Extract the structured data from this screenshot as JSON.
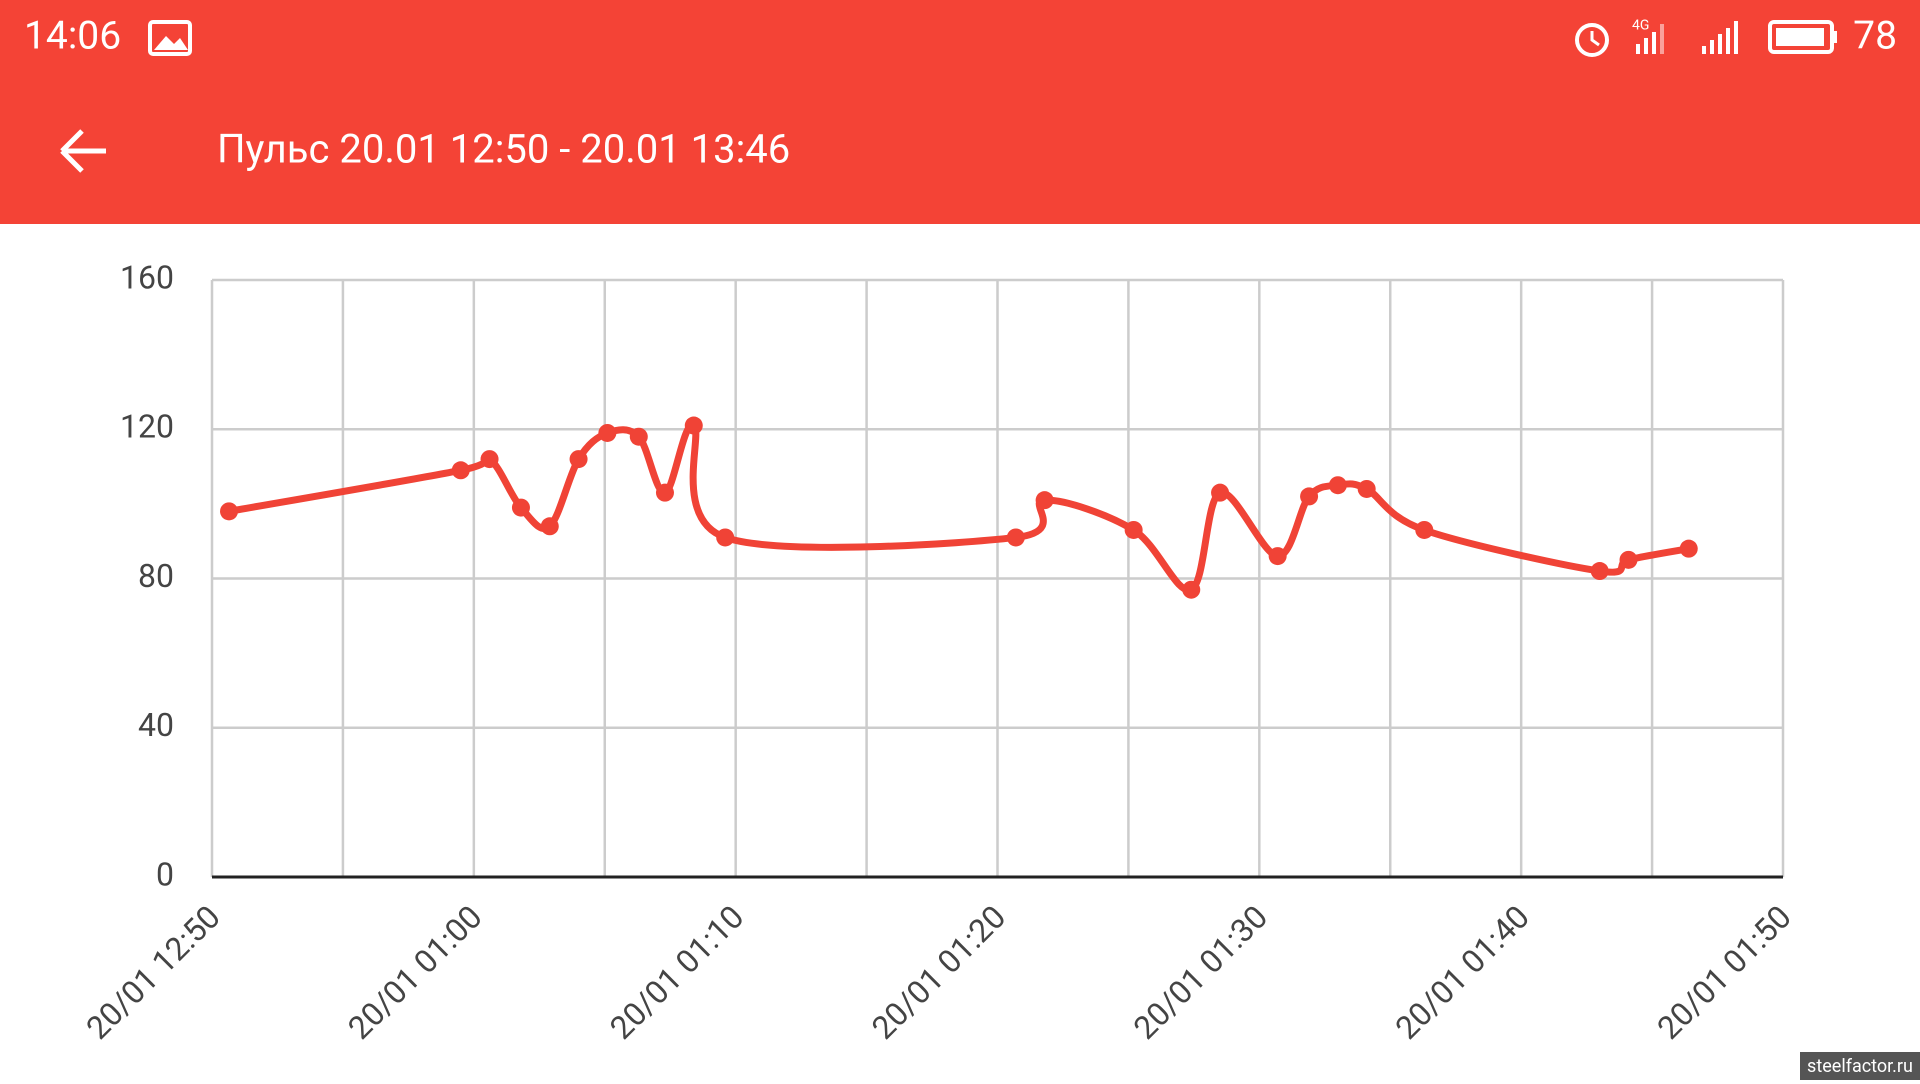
{
  "status_bar": {
    "time": "14:06",
    "battery": "78"
  },
  "app_bar": {
    "title": "Пульс 20.01 12:50 - 20.01 13:46"
  },
  "chart_data": {
    "type": "line",
    "x": [
      0.65,
      9.5,
      10.6,
      11.8,
      12.9,
      14.0,
      15.1,
      16.3,
      17.3,
      18.4,
      19.6,
      30.7,
      31.8,
      35.2,
      37.4,
      38.5,
      40.7,
      41.9,
      43.0,
      44.1,
      46.3,
      53.0,
      54.1,
      56.4
    ],
    "series": [
      {
        "color": "#f04336",
        "values": [
          98,
          109,
          112,
          99,
          94,
          112,
          119,
          118,
          103,
          121,
          91,
          91,
          101,
          93,
          77,
          103,
          86,
          102,
          105,
          104,
          93,
          82,
          85,
          88
        ]
      }
    ],
    "xlim": [
      0,
      60
    ],
    "xticks": [
      {
        "value": 0,
        "label": "20/01 12:50"
      },
      {
        "value": 10,
        "label": "20/01 01:00"
      },
      {
        "value": 20,
        "label": "20/01 01:10"
      },
      {
        "value": 30,
        "label": "20/01 01:20"
      },
      {
        "value": 40,
        "label": "20/01 01:30"
      },
      {
        "value": 50,
        "label": "20/01 01:40"
      },
      {
        "value": 60,
        "label": "20/01 01:50"
      }
    ],
    "minor_xticks": [
      5,
      15,
      25,
      35,
      45,
      55
    ],
    "ylim": [
      0,
      160
    ],
    "yticks": [
      0,
      40,
      80,
      120,
      160
    ],
    "grid": true
  },
  "watermark": "steelfactor.ru"
}
